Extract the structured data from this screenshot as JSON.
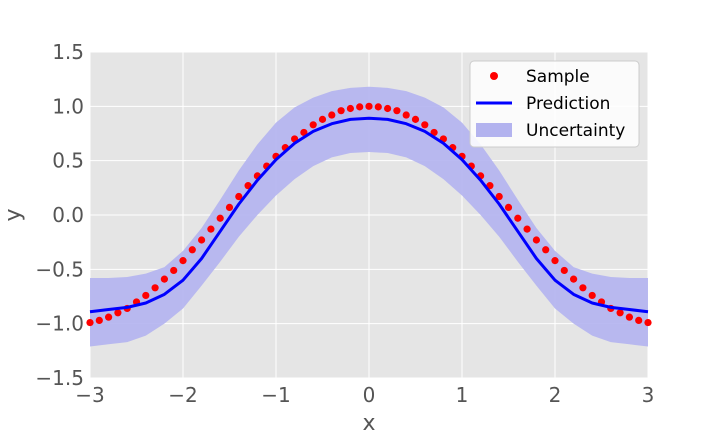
{
  "chart_data": {
    "type": "scatter",
    "title": "",
    "xlabel": "x",
    "ylabel": "y",
    "xlim": [
      -3,
      3
    ],
    "ylim": [
      -1.5,
      1.5
    ],
    "grid": true,
    "legend_position": "top-right",
    "xticks": [
      -3,
      -2,
      -1,
      0,
      1,
      2,
      3
    ],
    "xtick_labels": [
      "−3",
      "−2",
      "−1",
      "0",
      "1",
      "2",
      "3"
    ],
    "yticks": [
      -1.5,
      -1.0,
      -0.5,
      0.0,
      0.5,
      1.0,
      1.5
    ],
    "ytick_labels": [
      "−1.5",
      "−1.0",
      "−0.5",
      "0.0",
      "0.5",
      "1.0",
      "1.5"
    ],
    "colors": {
      "background": "#e5e5e5",
      "grid": "#ffffff",
      "sample": "#ff0000",
      "prediction": "#0000ff",
      "uncertainty": "#b3b3ef"
    },
    "series": [
      {
        "name": "Sample",
        "kind": "scatter",
        "x": [
          -3.0,
          -2.9,
          -2.8,
          -2.7,
          -2.6,
          -2.5,
          -2.4,
          -2.3,
          -2.2,
          -2.1,
          -2.0,
          -1.9,
          -1.8,
          -1.7,
          -1.6,
          -1.5,
          -1.4,
          -1.3,
          -1.2,
          -1.1,
          -1.0,
          -0.9,
          -0.8,
          -0.7,
          -0.6,
          -0.5,
          -0.4,
          -0.3,
          -0.2,
          -0.1,
          0.0,
          0.1,
          0.2,
          0.3,
          0.4,
          0.5,
          0.6,
          0.7,
          0.8,
          0.9,
          1.0,
          1.1,
          1.2,
          1.3,
          1.4,
          1.5,
          1.6,
          1.7,
          1.8,
          1.9,
          2.0,
          2.1,
          2.2,
          2.3,
          2.4,
          2.5,
          2.6,
          2.7,
          2.8,
          2.9,
          3.0
        ],
        "y": [
          -0.99,
          -0.97,
          -0.94,
          -0.9,
          -0.86,
          -0.8,
          -0.74,
          -0.67,
          -0.59,
          -0.51,
          -0.42,
          -0.32,
          -0.23,
          -0.13,
          -0.03,
          0.07,
          0.17,
          0.27,
          0.36,
          0.45,
          0.54,
          0.62,
          0.7,
          0.76,
          0.83,
          0.88,
          0.92,
          0.96,
          0.98,
          0.995,
          1.0,
          0.995,
          0.98,
          0.96,
          0.92,
          0.88,
          0.83,
          0.76,
          0.7,
          0.62,
          0.54,
          0.45,
          0.36,
          0.27,
          0.17,
          0.07,
          -0.03,
          -0.13,
          -0.23,
          -0.32,
          -0.42,
          -0.51,
          -0.59,
          -0.67,
          -0.74,
          -0.8,
          -0.86,
          -0.9,
          -0.94,
          -0.97,
          -0.99
        ]
      },
      {
        "name": "Prediction",
        "kind": "line",
        "x": [
          -3.0,
          -2.8,
          -2.6,
          -2.4,
          -2.2,
          -2.0,
          -1.8,
          -1.6,
          -1.4,
          -1.2,
          -1.0,
          -0.8,
          -0.6,
          -0.4,
          -0.2,
          0.0,
          0.2,
          0.4,
          0.6,
          0.8,
          1.0,
          1.2,
          1.4,
          1.6,
          1.8,
          2.0,
          2.2,
          2.4,
          2.6,
          2.8,
          3.0
        ],
        "y": [
          -0.89,
          -0.87,
          -0.85,
          -0.81,
          -0.73,
          -0.6,
          -0.4,
          -0.15,
          0.1,
          0.32,
          0.51,
          0.66,
          0.77,
          0.84,
          0.88,
          0.89,
          0.88,
          0.84,
          0.77,
          0.66,
          0.51,
          0.32,
          0.1,
          -0.15,
          -0.4,
          -0.6,
          -0.73,
          -0.81,
          -0.85,
          -0.87,
          -0.89
        ]
      },
      {
        "name": "Uncertainty",
        "kind": "band",
        "x": [
          -3.0,
          -2.8,
          -2.6,
          -2.4,
          -2.2,
          -2.0,
          -1.8,
          -1.6,
          -1.4,
          -1.2,
          -1.0,
          -0.8,
          -0.6,
          -0.4,
          -0.2,
          0.0,
          0.2,
          0.4,
          0.6,
          0.8,
          1.0,
          1.2,
          1.4,
          1.6,
          1.8,
          2.0,
          2.2,
          2.4,
          2.6,
          2.8,
          3.0
        ],
        "upper": [
          -0.58,
          -0.58,
          -0.57,
          -0.54,
          -0.48,
          -0.33,
          -0.12,
          0.14,
          0.41,
          0.65,
          0.85,
          0.99,
          1.08,
          1.14,
          1.17,
          1.18,
          1.17,
          1.14,
          1.08,
          0.99,
          0.85,
          0.65,
          0.41,
          0.14,
          -0.12,
          -0.33,
          -0.48,
          -0.54,
          -0.57,
          -0.58,
          -0.58
        ],
        "lower": [
          -1.21,
          -1.19,
          -1.17,
          -1.11,
          -1.0,
          -0.86,
          -0.65,
          -0.43,
          -0.2,
          0.0,
          0.18,
          0.33,
          0.45,
          0.53,
          0.57,
          0.58,
          0.57,
          0.53,
          0.45,
          0.33,
          0.18,
          0.0,
          -0.2,
          -0.43,
          -0.65,
          -0.86,
          -1.0,
          -1.11,
          -1.17,
          -1.19,
          -1.21
        ]
      }
    ]
  }
}
